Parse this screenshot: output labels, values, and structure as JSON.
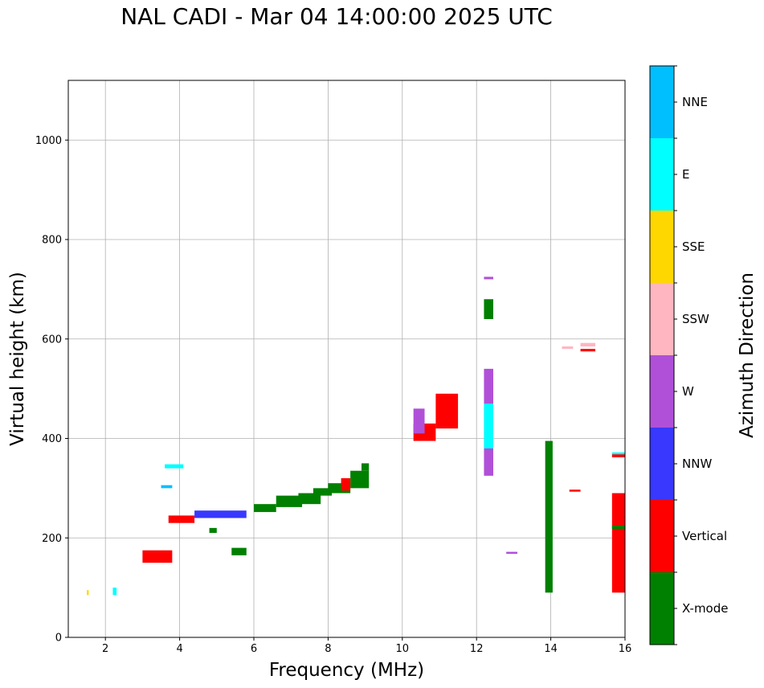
{
  "chart_data": {
    "type": "scatter",
    "title": "NAL CADI - Mar 04 14:00:00 2025 UTC",
    "xlabel": "Frequency (MHz)",
    "ylabel": "Virtual height (km)",
    "xlim": [
      1,
      16
    ],
    "ylim": [
      0,
      1120
    ],
    "xticks": [
      2,
      4,
      6,
      8,
      10,
      12,
      14,
      16
    ],
    "yticks": [
      0,
      200,
      400,
      600,
      800,
      1000
    ],
    "grid": true,
    "colorbar": {
      "label": "Azimuth Direction",
      "categories": [
        {
          "name": "X-mode",
          "color": "#008000"
        },
        {
          "name": "Vertical",
          "color": "#ff0000"
        },
        {
          "name": "NNW",
          "color": "#3838ff"
        },
        {
          "name": "W",
          "color": "#b050d8"
        },
        {
          "name": "SSW",
          "color": "#ffb6c1"
        },
        {
          "name": "SSE",
          "color": "#ffd700"
        },
        {
          "name": "E",
          "color": "#00ffff"
        },
        {
          "name": "NNE",
          "color": "#00bfff"
        }
      ]
    },
    "rects": [
      {
        "c": 0,
        "f0": 6.0,
        "f1": 6.6,
        "h0": 252,
        "h1": 268
      },
      {
        "c": 0,
        "f0": 6.6,
        "f1": 7.3,
        "h0": 262,
        "h1": 285
      },
      {
        "c": 0,
        "f0": 7.2,
        "f1": 7.8,
        "h0": 268,
        "h1": 290
      },
      {
        "c": 0,
        "f0": 7.6,
        "f1": 8.1,
        "h0": 285,
        "h1": 300
      },
      {
        "c": 0,
        "f0": 8.0,
        "f1": 8.6,
        "h0": 290,
        "h1": 310
      },
      {
        "c": 0,
        "f0": 8.6,
        "f1": 9.1,
        "h0": 300,
        "h1": 335
      },
      {
        "c": 0,
        "f0": 8.9,
        "f1": 9.1,
        "h0": 335,
        "h1": 350
      },
      {
        "c": 0,
        "f0": 5.4,
        "f1": 5.8,
        "h0": 165,
        "h1": 180
      },
      {
        "c": 0,
        "f0": 4.8,
        "f1": 5.0,
        "h0": 210,
        "h1": 220
      },
      {
        "c": 0,
        "f0": 13.85,
        "f1": 14.05,
        "h0": 90,
        "h1": 395
      },
      {
        "c": 1,
        "f0": 15.65,
        "f1": 16.0,
        "h0": 90,
        "h1": 290
      },
      {
        "c": 1,
        "f0": 15.65,
        "f1": 16.0,
        "h0": 362,
        "h1": 370
      },
      {
        "c": 0,
        "f0": 15.65,
        "f1": 16.0,
        "h0": 218,
        "h1": 225
      },
      {
        "c": 6,
        "f0": 15.65,
        "f1": 16.0,
        "h0": 368,
        "h1": 372
      },
      {
        "c": 3,
        "f0": 12.2,
        "f1": 12.45,
        "h0": 325,
        "h1": 540
      },
      {
        "c": 6,
        "f0": 12.2,
        "f1": 12.45,
        "h0": 380,
        "h1": 470
      },
      {
        "c": 0,
        "f0": 12.2,
        "f1": 12.45,
        "h0": 640,
        "h1": 680
      },
      {
        "c": 3,
        "f0": 12.2,
        "f1": 12.45,
        "h0": 720,
        "h1": 725
      },
      {
        "c": 1,
        "f0": 10.3,
        "f1": 10.9,
        "h0": 395,
        "h1": 430
      },
      {
        "c": 1,
        "f0": 10.9,
        "f1": 11.5,
        "h0": 420,
        "h1": 490
      },
      {
        "c": 3,
        "f0": 10.3,
        "f1": 10.6,
        "h0": 410,
        "h1": 460
      },
      {
        "c": 1,
        "f0": 8.35,
        "f1": 8.6,
        "h0": 295,
        "h1": 320
      },
      {
        "c": 1,
        "f0": 3.7,
        "f1": 4.4,
        "h0": 230,
        "h1": 245
      },
      {
        "c": 1,
        "f0": 3.0,
        "f1": 3.8,
        "h0": 150,
        "h1": 175
      },
      {
        "c": 2,
        "f0": 4.4,
        "f1": 5.8,
        "h0": 240,
        "h1": 255
      },
      {
        "c": 6,
        "f0": 3.6,
        "f1": 4.1,
        "h0": 340,
        "h1": 348
      },
      {
        "c": 7,
        "f0": 3.5,
        "f1": 3.8,
        "h0": 300,
        "h1": 306
      },
      {
        "c": 6,
        "f0": 2.2,
        "f1": 2.3,
        "h0": 85,
        "h1": 100
      },
      {
        "c": 5,
        "f0": 1.5,
        "f1": 1.55,
        "h0": 85,
        "h1": 95
      },
      {
        "c": 1,
        "f0": 14.5,
        "f1": 14.8,
        "h0": 293,
        "h1": 297
      },
      {
        "c": 4,
        "f0": 14.3,
        "f1": 14.6,
        "h0": 580,
        "h1": 585
      },
      {
        "c": 4,
        "f0": 14.8,
        "f1": 15.2,
        "h0": 585,
        "h1": 592
      },
      {
        "c": 1,
        "f0": 14.8,
        "f1": 15.2,
        "h0": 575,
        "h1": 580
      },
      {
        "c": 3,
        "f0": 12.8,
        "f1": 13.1,
        "h0": 168,
        "h1": 172
      }
    ]
  }
}
